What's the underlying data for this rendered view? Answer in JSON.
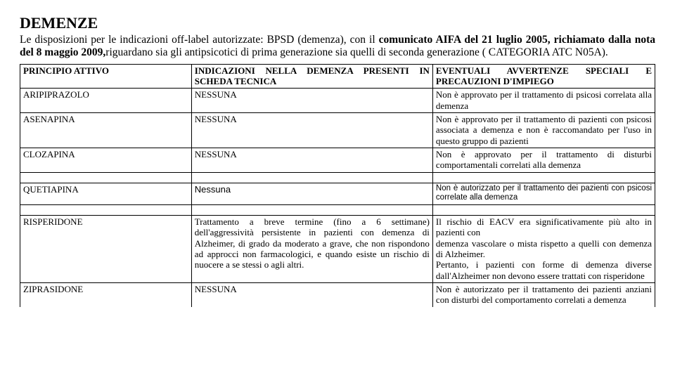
{
  "title": "DEMENZE",
  "intro_parts": {
    "p1": "Le disposizioni per le indicazioni off-label autorizzate: BPSD (demenza), con il ",
    "p2": "comunicato AIFA del 21 luglio 2005, richiamato dalla nota del 8 maggio 2009,",
    "p3": "riguardano sia gli antipsicotici di prima generazione sia quelli di seconda generazione ( CATEGORIA  ATC N05A)."
  },
  "headers": {
    "h1": "PRINCIPIO ATTIVO",
    "h2": "INDICAZIONI NELLA DEMENZA PRESENTI IN SCHEDA TECNICA",
    "h3": "EVENTUALI AVVERTENZE SPECIALI E PRECAUZIONI D'IMPIEGO"
  },
  "rows": {
    "aripiprazolo": {
      "name": "ARIPIPRAZOLO",
      "ind": "NESSUNA",
      "warn": "Non è approvato per il trattamento di psicosi correlata alla demenza"
    },
    "asenapina": {
      "name": "ASENAPINA",
      "ind": "NESSUNA",
      "warn": "Non è approvato per il trattamento di pazienti con psicosi associata a demenza e non è raccomandato per l'uso in questo gruppo di pazienti"
    },
    "clozapina": {
      "name": "CLOZAPINA",
      "ind": "NESSUNA",
      "warn": "Non è approvato per il trattamento di disturbi comportamentali correlati alla demenza"
    },
    "quetiapina": {
      "name": "QUETIAPINA",
      "ind": "Nessuna",
      "warn": "Non è autorizzato per il trattamento dei pazienti con psicosi correlate alla demenza"
    },
    "risperidone": {
      "name": "RISPERIDONE",
      "ind": "Trattamento a breve termine (fino a 6 settimane) dell'aggressività persistente in pazienti con demenza di Alzheimer, di grado da moderato a grave, che non rispondono ad approcci non farmacologici, e quando esiste un rischio di nuocere a se stessi o agli altri.",
      "warn": "Il rischio di EACV era significativamente più alto in pazienti con\ndemenza vascolare o mista rispetto a quelli con demenza di Alzheimer.\nPertanto, i pazienti con forme di demenza diverse dall'Alzheimer non devono essere trattati con risperidone"
    },
    "ziprasidone": {
      "name": "ZIPRASIDONE",
      "ind": "NESSUNA",
      "warn": "Non è autorizzato per il trattamento dei pazienti anziani con disturbi del comportamento correlati a demenza"
    }
  }
}
